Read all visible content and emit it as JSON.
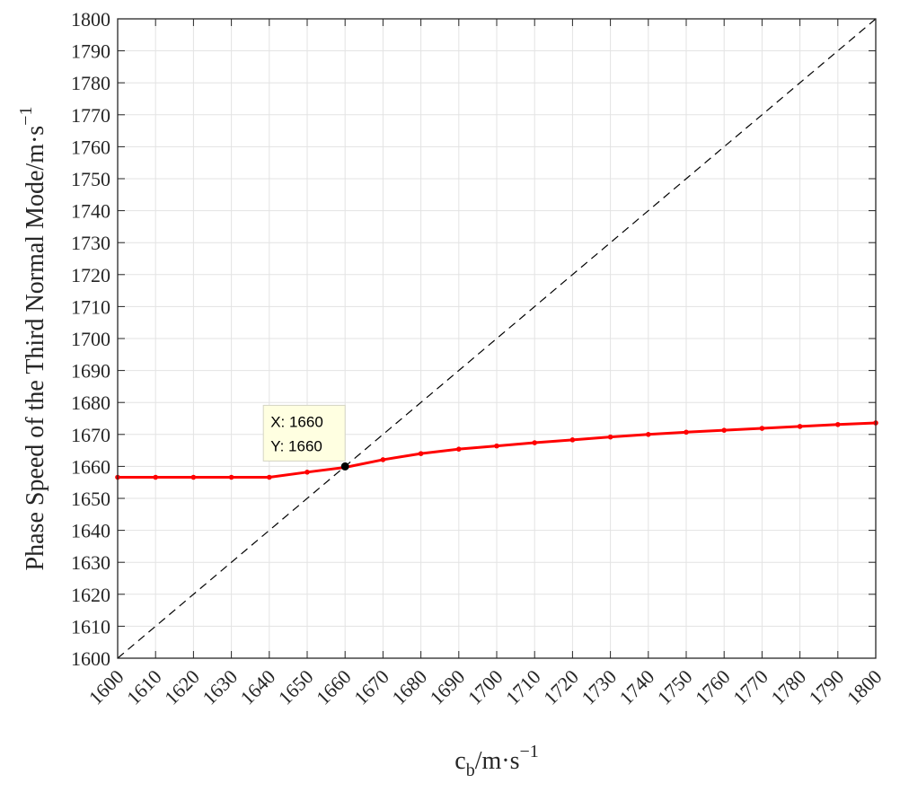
{
  "chart_data": {
    "type": "line",
    "xlabel": {
      "main": "c",
      "sub": "b",
      "unit": "/m·s",
      "sup": "−1"
    },
    "ylabel": {
      "main": "Phase Speed of the Third Normal Mode/m·s",
      "sup": "−1"
    },
    "xlim": [
      1600,
      1800
    ],
    "ylim": [
      1600,
      1800
    ],
    "x_ticks": [
      "1600",
      "1610",
      "1620",
      "1630",
      "1640",
      "1650",
      "1660",
      "1670",
      "1680",
      "1690",
      "1700",
      "1710",
      "1720",
      "1730",
      "1740",
      "1750",
      "1760",
      "1770",
      "1780",
      "1790",
      "1800"
    ],
    "y_ticks": [
      "1600",
      "1610",
      "1620",
      "1630",
      "1640",
      "1650",
      "1660",
      "1670",
      "1680",
      "1690",
      "1700",
      "1710",
      "1720",
      "1730",
      "1740",
      "1750",
      "1760",
      "1770",
      "1780",
      "1790",
      "1800"
    ],
    "grid": true,
    "series": [
      {
        "style": "solid-with-markers",
        "color": "#ff0000",
        "x": [
          1600,
          1610,
          1620,
          1630,
          1640,
          1650,
          1660,
          1670,
          1680,
          1690,
          1700,
          1710,
          1720,
          1730,
          1740,
          1750,
          1760,
          1770,
          1780,
          1790,
          1800
        ],
        "y": [
          1656.6,
          1656.6,
          1656.6,
          1656.6,
          1656.6,
          1658.2,
          1659.7,
          1662.1,
          1664.0,
          1665.4,
          1666.4,
          1667.4,
          1668.3,
          1669.2,
          1670.0,
          1670.7,
          1671.3,
          1671.9,
          1672.5,
          1673.1,
          1673.6
        ]
      },
      {
        "style": "dashed",
        "color": "#000000",
        "x": [
          1600,
          1800
        ],
        "y": [
          1600,
          1800
        ]
      }
    ],
    "datatip": {
      "x": 1660,
      "y": 1660,
      "x_label": "X: 1660",
      "y_label": "Y: 1660"
    }
  }
}
